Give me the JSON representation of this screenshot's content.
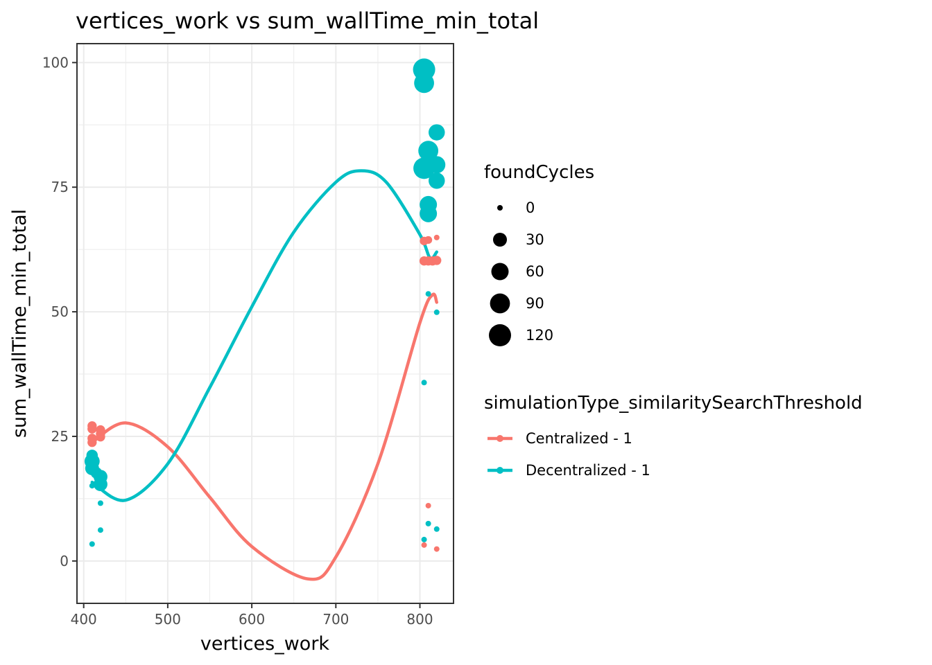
{
  "chart_data": {
    "type": "scatter",
    "title": "vertices_work  vs  sum_wallTime_min_total",
    "xlabel": "vertices_work",
    "ylabel": "sum_wallTime_min_total",
    "xlim": [
      392,
      840
    ],
    "ylim": [
      -8.5,
      103.8
    ],
    "x_ticks": [
      400,
      500,
      600,
      700,
      800
    ],
    "y_ticks": [
      0,
      25,
      50,
      75,
      100
    ],
    "grid": true,
    "legend_placement": "right",
    "size_legend": {
      "title": "foundCycles",
      "entries": [
        {
          "label": "0",
          "value": 0
        },
        {
          "label": "30",
          "value": 30
        },
        {
          "label": "60",
          "value": 60
        },
        {
          "label": "90",
          "value": 90
        },
        {
          "label": "120",
          "value": 120
        }
      ]
    },
    "color_legend": {
      "title": "simulationType_similaritySearchThreshold"
    },
    "series": [
      {
        "name": "Centralized - 1",
        "color": "#F8766D",
        "points": [
          {
            "x": 410,
            "y": 27.1,
            "size": 6
          },
          {
            "x": 410,
            "y": 26.5,
            "size": 6
          },
          {
            "x": 410,
            "y": 24.6,
            "size": 6
          },
          {
            "x": 410,
            "y": 23.8,
            "size": 6
          },
          {
            "x": 410,
            "y": 21.1,
            "size": 4
          },
          {
            "x": 420,
            "y": 26.3,
            "size": 6
          },
          {
            "x": 420,
            "y": 25.5,
            "size": 6
          },
          {
            "x": 420,
            "y": 24.9,
            "size": 6
          },
          {
            "x": 805,
            "y": 64.2,
            "size": 4
          },
          {
            "x": 805,
            "y": 60.2,
            "size": 6
          },
          {
            "x": 805,
            "y": 3.2,
            "size": 0
          },
          {
            "x": 810,
            "y": 64.4,
            "size": 2
          },
          {
            "x": 810,
            "y": 60.2,
            "size": 6
          },
          {
            "x": 810,
            "y": 11.1,
            "size": 0
          },
          {
            "x": 815,
            "y": 60.2,
            "size": 6
          },
          {
            "x": 820,
            "y": 64.9,
            "size": 0
          },
          {
            "x": 820,
            "y": 60.3,
            "size": 6
          },
          {
            "x": 820,
            "y": 2.4,
            "size": 0
          }
        ],
        "trend": [
          [
            410,
            23.8
          ],
          [
            450,
            27.7
          ],
          [
            500,
            22.9
          ],
          [
            550,
            12.8
          ],
          [
            600,
            2.9
          ],
          [
            667,
            -3.6
          ],
          [
            700,
            0.8
          ],
          [
            750,
            19.5
          ],
          [
            800,
            47.8
          ],
          [
            815,
            53.4
          ],
          [
            820,
            51.9
          ]
        ]
      },
      {
        "name": "Decentralized - 1",
        "color": "#00BFC4",
        "points": [
          {
            "x": 410,
            "y": 20.0,
            "size": 40
          },
          {
            "x": 410,
            "y": 18.6,
            "size": 30
          },
          {
            "x": 410,
            "y": 21.2,
            "size": 15
          },
          {
            "x": 410,
            "y": 15.1,
            "size": 0
          },
          {
            "x": 410,
            "y": 3.4,
            "size": 0
          },
          {
            "x": 415,
            "y": 17.7,
            "size": 15
          },
          {
            "x": 420,
            "y": 16.9,
            "size": 30
          },
          {
            "x": 420,
            "y": 15.4,
            "size": 30
          },
          {
            "x": 420,
            "y": 11.6,
            "size": 0
          },
          {
            "x": 420,
            "y": 6.2,
            "size": 0
          },
          {
            "x": 805,
            "y": 98.6,
            "size": 120
          },
          {
            "x": 805,
            "y": 95.9,
            "size": 90
          },
          {
            "x": 805,
            "y": 78.8,
            "size": 110
          },
          {
            "x": 805,
            "y": 35.8,
            "size": 0
          },
          {
            "x": 805,
            "y": 4.3,
            "size": 0
          },
          {
            "x": 810,
            "y": 82.3,
            "size": 90
          },
          {
            "x": 810,
            "y": 71.5,
            "size": 60
          },
          {
            "x": 810,
            "y": 69.7,
            "size": 60
          },
          {
            "x": 810,
            "y": 53.6,
            "size": 0
          },
          {
            "x": 810,
            "y": 7.5,
            "size": 0
          },
          {
            "x": 820,
            "y": 86.0,
            "size": 50
          },
          {
            "x": 820,
            "y": 79.5,
            "size": 60
          },
          {
            "x": 820,
            "y": 76.3,
            "size": 50
          },
          {
            "x": 820,
            "y": 49.9,
            "size": 0
          },
          {
            "x": 820,
            "y": 6.4,
            "size": 0
          }
        ],
        "trend": [
          [
            410,
            15.8
          ],
          [
            450,
            12.2
          ],
          [
            500,
            19.5
          ],
          [
            550,
            34.8
          ],
          [
            600,
            51.0
          ],
          [
            650,
            66.0
          ],
          [
            700,
            76.0
          ],
          [
            730,
            78.3
          ],
          [
            760,
            76.0
          ],
          [
            800,
            65.5
          ],
          [
            812,
            60.8
          ],
          [
            820,
            62.0
          ]
        ]
      }
    ]
  }
}
